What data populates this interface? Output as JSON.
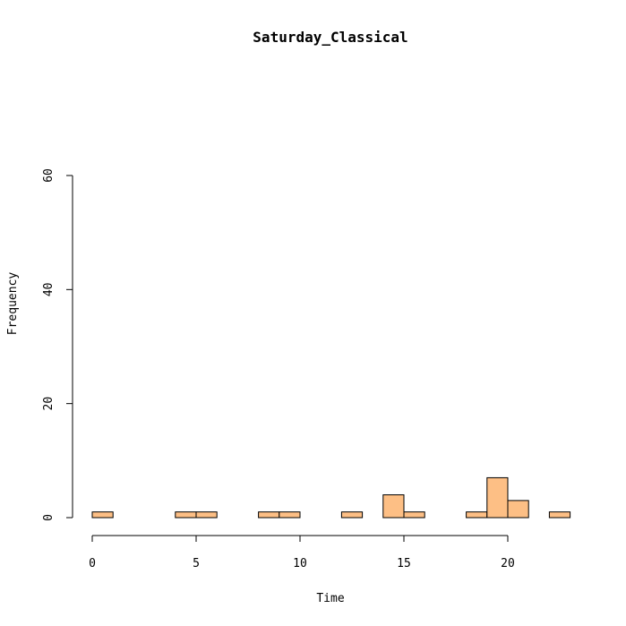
{
  "chart_data": {
    "type": "bar",
    "title": "Saturday_Classical",
    "xlabel": "Time",
    "ylabel": "Frequency",
    "bin_width": 1,
    "bins": [
      {
        "x0": 0,
        "x1": 1,
        "count": 1
      },
      {
        "x0": 1,
        "x1": 2,
        "count": 0
      },
      {
        "x0": 2,
        "x1": 3,
        "count": 0
      },
      {
        "x0": 3,
        "x1": 4,
        "count": 0
      },
      {
        "x0": 4,
        "x1": 5,
        "count": 1
      },
      {
        "x0": 5,
        "x1": 6,
        "count": 1
      },
      {
        "x0": 6,
        "x1": 7,
        "count": 0
      },
      {
        "x0": 7,
        "x1": 8,
        "count": 0
      },
      {
        "x0": 8,
        "x1": 9,
        "count": 1
      },
      {
        "x0": 9,
        "x1": 10,
        "count": 1
      },
      {
        "x0": 10,
        "x1": 11,
        "count": 0
      },
      {
        "x0": 11,
        "x1": 12,
        "count": 0
      },
      {
        "x0": 12,
        "x1": 13,
        "count": 1
      },
      {
        "x0": 13,
        "x1": 14,
        "count": 0
      },
      {
        "x0": 14,
        "x1": 15,
        "count": 4
      },
      {
        "x0": 15,
        "x1": 16,
        "count": 1
      },
      {
        "x0": 16,
        "x1": 17,
        "count": 0
      },
      {
        "x0": 17,
        "x1": 18,
        "count": 0
      },
      {
        "x0": 18,
        "x1": 19,
        "count": 1
      },
      {
        "x0": 19,
        "x1": 20,
        "count": 7
      },
      {
        "x0": 20,
        "x1": 21,
        "count": 3
      },
      {
        "x0": 21,
        "x1": 22,
        "count": 0
      },
      {
        "x0": 22,
        "x1": 23,
        "count": 1
      }
    ],
    "x_ticks": [
      0,
      5,
      10,
      15,
      20
    ],
    "y_ticks": [
      0,
      20,
      40,
      60
    ],
    "xlim": [
      0,
      24
    ],
    "ylim": [
      0,
      60
    ],
    "bar_color": "#fdbf85",
    "grid": false,
    "legend": "none"
  }
}
